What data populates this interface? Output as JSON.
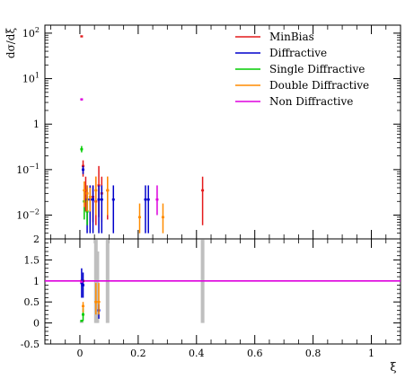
{
  "chart_data": {
    "type": "scatter",
    "ylabel": "dσ/dξ",
    "xlabel": "ξ",
    "xlim": [
      -0.12,
      1.1
    ],
    "x_ticks": [
      "0",
      "0.2",
      "0.4",
      "0.6",
      "0.8",
      "1"
    ],
    "y_scale": "log",
    "ylim": [
      0.003,
      150
    ],
    "y_ticks": [
      "10^-2",
      "10^-1",
      "1",
      "10^1",
      "10^2"
    ],
    "legend_position": "top-right",
    "ratio_panel": {
      "ylim": [
        -0.5,
        2.0
      ],
      "y_ticks": [
        "-0.5",
        "0",
        "0.5",
        "1",
        "1.5",
        "2"
      ],
      "reference_line": 1.0,
      "mc_uncertainty_bands": [
        {
          "x": 0.006,
          "low": 0.0,
          "high": 0.05
        },
        {
          "x": 0.055,
          "low": 0.0,
          "high": 1.98
        },
        {
          "x": 0.06,
          "low": 0.0,
          "high": 1.7
        },
        {
          "x": 0.095,
          "low": 0.0,
          "high": 1.98
        },
        {
          "x": 0.421,
          "low": 0.0,
          "high": 1.98
        }
      ]
    },
    "series": [
      {
        "name": "MinBias",
        "color": "#e41a1c",
        "points": [
          {
            "x": 0.006,
            "y": 85,
            "lo": 82,
            "hi": 88
          },
          {
            "x": 0.011,
            "y": 0.12,
            "lo": 0.07,
            "hi": 0.16
          },
          {
            "x": 0.02,
            "y": 0.035,
            "lo": 0.012,
            "hi": 0.07
          },
          {
            "x": 0.045,
            "y": 0.025,
            "lo": 0.007,
            "hi": 0.045
          },
          {
            "x": 0.055,
            "y": 0.02,
            "lo": 0.006,
            "hi": 0.07
          },
          {
            "x": 0.065,
            "y": 0.045,
            "lo": 0.009,
            "hi": 0.12
          },
          {
            "x": 0.075,
            "y": 0.03,
            "lo": 0.007,
            "hi": 0.07
          },
          {
            "x": 0.095,
            "y": 0.035,
            "lo": 0.008,
            "hi": 0.07
          },
          {
            "x": 0.421,
            "y": 0.035,
            "lo": 0.006,
            "hi": 0.07
          }
        ]
      },
      {
        "name": "Diffractive",
        "color": "#0000cc",
        "points": [
          {
            "x": 0.011,
            "y": 0.1,
            "lo": 0.08,
            "hi": 0.12
          },
          {
            "x": 0.025,
            "y": 0.022,
            "lo": 0.004,
            "hi": 0.045
          },
          {
            "x": 0.035,
            "y": 0.022,
            "lo": 0.004,
            "hi": 0.045
          },
          {
            "x": 0.045,
            "y": 0.022,
            "lo": 0.004,
            "hi": 0.045
          },
          {
            "x": 0.065,
            "y": 0.022,
            "lo": 0.004,
            "hi": 0.045
          },
          {
            "x": 0.075,
            "y": 0.022,
            "lo": 0.004,
            "hi": 0.045
          },
          {
            "x": 0.115,
            "y": 0.022,
            "lo": 0.004,
            "hi": 0.045
          },
          {
            "x": 0.225,
            "y": 0.022,
            "lo": 0.004,
            "hi": 0.045
          },
          {
            "x": 0.235,
            "y": 0.022,
            "lo": 0.004,
            "hi": 0.045
          }
        ]
      },
      {
        "name": "Single Diffractive",
        "color": "#00cc00",
        "points": [
          {
            "x": 0.006,
            "y": 0.28,
            "lo": 0.24,
            "hi": 0.33
          },
          {
            "x": 0.015,
            "y": 0.02,
            "lo": 0.008,
            "hi": 0.035
          },
          {
            "x": 0.025,
            "y": 0.012,
            "lo": 0.006,
            "hi": 0.025
          }
        ]
      },
      {
        "name": "Double Diffractive",
        "color": "#ff8c00",
        "points": [
          {
            "x": 0.015,
            "y": 0.035,
            "lo": 0.015,
            "hi": 0.055
          },
          {
            "x": 0.025,
            "y": 0.03,
            "lo": 0.012,
            "hi": 0.045
          },
          {
            "x": 0.035,
            "y": 0.025,
            "lo": 0.012,
            "hi": 0.04
          },
          {
            "x": 0.055,
            "y": 0.035,
            "lo": 0.01,
            "hi": 0.07
          },
          {
            "x": 0.095,
            "y": 0.035,
            "lo": 0.01,
            "hi": 0.07
          },
          {
            "x": 0.205,
            "y": 0.009,
            "lo": 0.004,
            "hi": 0.018
          },
          {
            "x": 0.285,
            "y": 0.009,
            "lo": 0.004,
            "hi": 0.018
          }
        ]
      },
      {
        "name": "Non Diffractive",
        "color": "#dd00dd",
        "points": [
          {
            "x": 0.006,
            "y": 3.5,
            "lo": 3.3,
            "hi": 3.7
          },
          {
            "x": 0.265,
            "y": 0.022,
            "lo": 0.01,
            "hi": 0.045
          }
        ]
      }
    ],
    "ratio_series": [
      {
        "name": "MinBias",
        "points": [
          {
            "x": 0.006,
            "y": 1.0
          },
          {
            "x": 0.011,
            "y": 1.0
          }
        ]
      },
      {
        "name": "Diffractive",
        "points": [
          {
            "x": 0.006,
            "y": 0.95,
            "lo": 0.6,
            "hi": 1.3
          },
          {
            "x": 0.011,
            "y": 0.9,
            "lo": 0.6,
            "hi": 1.2
          },
          {
            "x": 0.065,
            "y": 0.3,
            "lo": 0.1,
            "hi": 0.45
          }
        ]
      },
      {
        "name": "Single Diffractive",
        "points": [
          {
            "x": 0.006,
            "y": 0.05
          },
          {
            "x": 0.011,
            "y": 0.2,
            "lo": 0.05,
            "hi": 0.35
          }
        ]
      },
      {
        "name": "Double Diffractive",
        "points": [
          {
            "x": 0.011,
            "y": 0.4,
            "lo": 0.25,
            "hi": 0.5
          },
          {
            "x": 0.055,
            "y": 0.5,
            "lo": 0.2,
            "hi": 0.95
          },
          {
            "x": 0.065,
            "y": 0.5,
            "lo": 0.2,
            "hi": 0.95
          }
        ]
      },
      {
        "name": "Non Diffractive",
        "points": [
          {
            "x": 0.006,
            "y": 0.98
          }
        ]
      }
    ]
  }
}
